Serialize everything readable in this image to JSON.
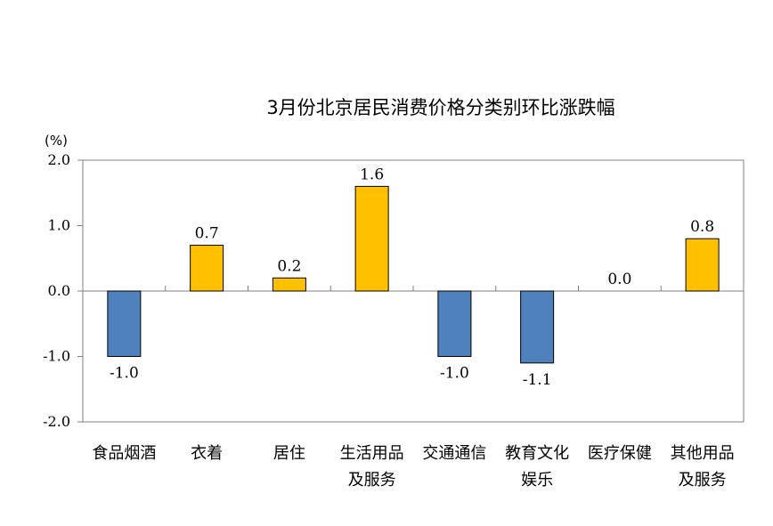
{
  "chart_data": {
    "type": "bar",
    "title": "3月份北京居民消费价格分类别环比涨跌幅",
    "unit_label": "(%)",
    "categories": [
      [
        "食品烟酒"
      ],
      [
        "衣着"
      ],
      [
        "居住"
      ],
      [
        "生活用品",
        "及服务"
      ],
      [
        "交通通信"
      ],
      [
        "教育文化",
        "娱乐"
      ],
      [
        "医疗保健"
      ],
      [
        "其他用品",
        "及服务"
      ]
    ],
    "values": [
      -1.0,
      0.7,
      0.2,
      1.6,
      -1.0,
      -1.1,
      0.0,
      0.8
    ],
    "data_labels": [
      "-1.0",
      "0.7",
      "0.2",
      "1.6",
      "-1.0",
      "-1.1",
      "0.0",
      "0.8"
    ],
    "yticks": [
      "2.0",
      "1.0",
      "0.0",
      "-1.0",
      "-2.0"
    ],
    "ylim": [
      -2.0,
      2.0
    ],
    "grid": false,
    "colors": {
      "positive": "#FFC000",
      "negative": "#4F81BD",
      "stroke": "#000000",
      "frame": "#808080"
    }
  }
}
